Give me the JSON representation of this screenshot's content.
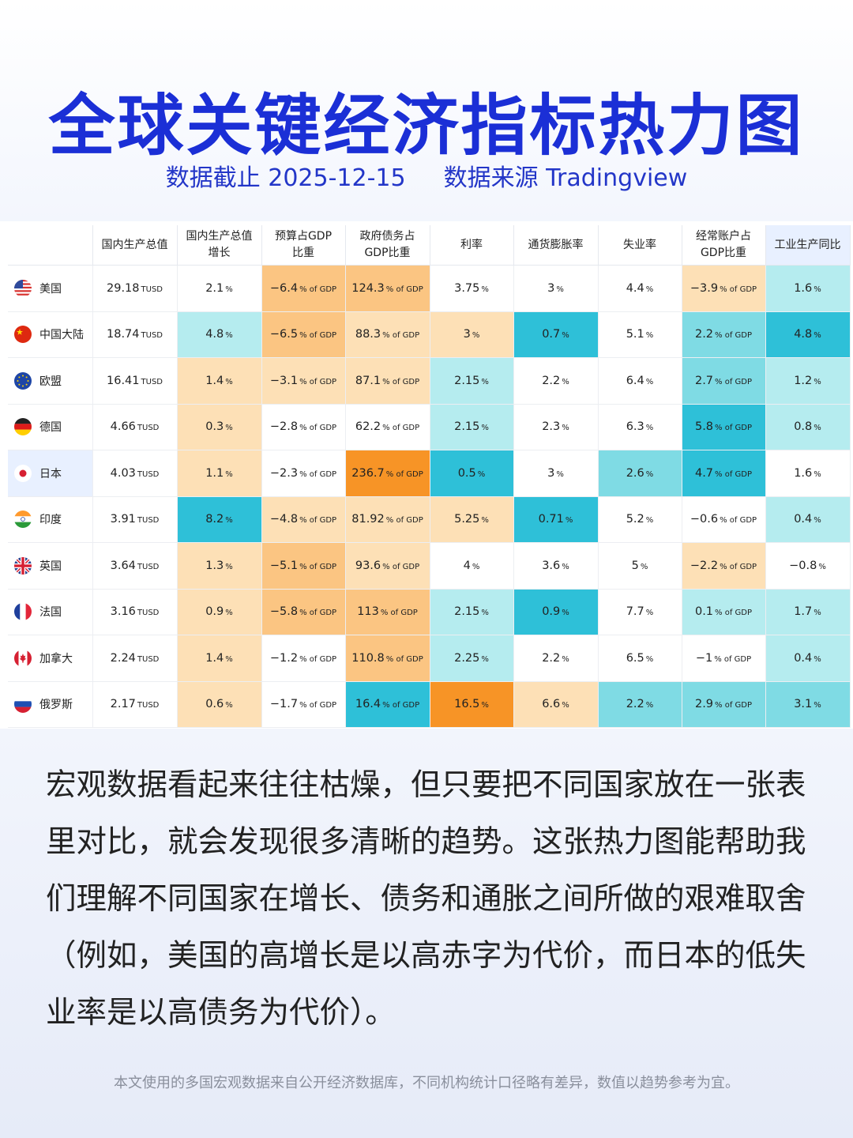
{
  "header": {
    "title": "全球关键经济指标热力图",
    "date_text": "数据截止 2025-12-15",
    "source_text": "数据来源 Tradingview"
  },
  "colors": {
    "title": "#1b2fd6",
    "orange_light": "#fde0b6",
    "orange_mid": "#fbc582",
    "orange_dark": "#f79426",
    "teal_light": "#b5ecef",
    "teal_mid": "#7fdbe4",
    "teal_dark": "#2ec0d8"
  },
  "chart_data": {
    "type": "table",
    "columns": [
      "国内生产总值",
      "国内生产总值\n增长",
      "预算占GDP\n比重",
      "政府债务占\nGDP比重",
      "利率",
      "通货膨胀率",
      "失业率",
      "经常账户占\nGDP比重",
      "工业生产同比"
    ],
    "highlighted_column": 8,
    "rows": [
      {
        "country": "美国",
        "flag": "us-flag-icon",
        "cells": [
          {
            "v": "29.18",
            "u": "TUSD",
            "c": "w"
          },
          {
            "v": "2.1",
            "u": "%",
            "c": "w"
          },
          {
            "v": "−6.4",
            "u": "% of GDP",
            "c": "o2"
          },
          {
            "v": "124.3",
            "u": "% of GDP",
            "c": "o2"
          },
          {
            "v": "3.75",
            "u": "%",
            "c": "w"
          },
          {
            "v": "3",
            "u": "%",
            "c": "w"
          },
          {
            "v": "4.4",
            "u": "%",
            "c": "w"
          },
          {
            "v": "−3.9",
            "u": "% of GDP",
            "c": "o1"
          },
          {
            "v": "1.6",
            "u": "%",
            "c": "t1"
          }
        ]
      },
      {
        "country": "中国大陆",
        "flag": "cn-flag-icon",
        "cells": [
          {
            "v": "18.74",
            "u": "TUSD",
            "c": "w"
          },
          {
            "v": "4.8",
            "u": "%",
            "c": "t1"
          },
          {
            "v": "−6.5",
            "u": "% of GDP",
            "c": "o2"
          },
          {
            "v": "88.3",
            "u": "% of GDP",
            "c": "o1"
          },
          {
            "v": "3",
            "u": "%",
            "c": "o1"
          },
          {
            "v": "0.7",
            "u": "%",
            "c": "t3"
          },
          {
            "v": "5.1",
            "u": "%",
            "c": "w"
          },
          {
            "v": "2.2",
            "u": "% of GDP",
            "c": "t2"
          },
          {
            "v": "4.8",
            "u": "%",
            "c": "t3"
          }
        ]
      },
      {
        "country": "欧盟",
        "flag": "eu-flag-icon",
        "cells": [
          {
            "v": "16.41",
            "u": "TUSD",
            "c": "w"
          },
          {
            "v": "1.4",
            "u": "%",
            "c": "o1"
          },
          {
            "v": "−3.1",
            "u": "% of GDP",
            "c": "o1"
          },
          {
            "v": "87.1",
            "u": "% of GDP",
            "c": "o1"
          },
          {
            "v": "2.15",
            "u": "%",
            "c": "t1"
          },
          {
            "v": "2.2",
            "u": "%",
            "c": "w"
          },
          {
            "v": "6.4",
            "u": "%",
            "c": "w"
          },
          {
            "v": "2.7",
            "u": "% of GDP",
            "c": "t2"
          },
          {
            "v": "1.2",
            "u": "%",
            "c": "t1"
          }
        ]
      },
      {
        "country": "德国",
        "flag": "de-flag-icon",
        "cells": [
          {
            "v": "4.66",
            "u": "TUSD",
            "c": "w"
          },
          {
            "v": "0.3",
            "u": "%",
            "c": "o1"
          },
          {
            "v": "−2.8",
            "u": "% of GDP",
            "c": "w"
          },
          {
            "v": "62.2",
            "u": "% of GDP",
            "c": "w"
          },
          {
            "v": "2.15",
            "u": "%",
            "c": "t1"
          },
          {
            "v": "2.3",
            "u": "%",
            "c": "w"
          },
          {
            "v": "6.3",
            "u": "%",
            "c": "w"
          },
          {
            "v": "5.8",
            "u": "% of GDP",
            "c": "t3"
          },
          {
            "v": "0.8",
            "u": "%",
            "c": "t1"
          }
        ]
      },
      {
        "country": "日本",
        "flag": "jp-flag-icon",
        "cells": [
          {
            "v": "4.03",
            "u": "TUSD",
            "c": "w"
          },
          {
            "v": "1.1",
            "u": "%",
            "c": "o1"
          },
          {
            "v": "−2.3",
            "u": "% of GDP",
            "c": "w"
          },
          {
            "v": "236.7",
            "u": "% of GDP",
            "c": "o3"
          },
          {
            "v": "0.5",
            "u": "%",
            "c": "t3"
          },
          {
            "v": "3",
            "u": "%",
            "c": "w"
          },
          {
            "v": "2.6",
            "u": "%",
            "c": "t2"
          },
          {
            "v": "4.7",
            "u": "% of GDP",
            "c": "t3"
          },
          {
            "v": "1.6",
            "u": "%",
            "c": "w"
          }
        ]
      },
      {
        "country": "印度",
        "flag": "in-flag-icon",
        "cells": [
          {
            "v": "3.91",
            "u": "TUSD",
            "c": "w"
          },
          {
            "v": "8.2",
            "u": "%",
            "c": "t3"
          },
          {
            "v": "−4.8",
            "u": "% of GDP",
            "c": "o1"
          },
          {
            "v": "81.92",
            "u": "% of GDP",
            "c": "o1"
          },
          {
            "v": "5.25",
            "u": "%",
            "c": "o1"
          },
          {
            "v": "0.71",
            "u": "%",
            "c": "t3"
          },
          {
            "v": "5.2",
            "u": "%",
            "c": "w"
          },
          {
            "v": "−0.6",
            "u": "% of GDP",
            "c": "w"
          },
          {
            "v": "0.4",
            "u": "%",
            "c": "t1"
          }
        ]
      },
      {
        "country": "英国",
        "flag": "uk-flag-icon",
        "cells": [
          {
            "v": "3.64",
            "u": "TUSD",
            "c": "w"
          },
          {
            "v": "1.3",
            "u": "%",
            "c": "o1"
          },
          {
            "v": "−5.1",
            "u": "% of GDP",
            "c": "o2"
          },
          {
            "v": "93.6",
            "u": "% of GDP",
            "c": "o1"
          },
          {
            "v": "4",
            "u": "%",
            "c": "w"
          },
          {
            "v": "3.6",
            "u": "%",
            "c": "w"
          },
          {
            "v": "5",
            "u": "%",
            "c": "w"
          },
          {
            "v": "−2.2",
            "u": "% of GDP",
            "c": "o1"
          },
          {
            "v": "−0.8",
            "u": "%",
            "c": "w"
          }
        ]
      },
      {
        "country": "法国",
        "flag": "fr-flag-icon",
        "cells": [
          {
            "v": "3.16",
            "u": "TUSD",
            "c": "w"
          },
          {
            "v": "0.9",
            "u": "%",
            "c": "o1"
          },
          {
            "v": "−5.8",
            "u": "% of GDP",
            "c": "o2"
          },
          {
            "v": "113",
            "u": "% of GDP",
            "c": "o2"
          },
          {
            "v": "2.15",
            "u": "%",
            "c": "t1"
          },
          {
            "v": "0.9",
            "u": "%",
            "c": "t3"
          },
          {
            "v": "7.7",
            "u": "%",
            "c": "w"
          },
          {
            "v": "0.1",
            "u": "% of GDP",
            "c": "t1"
          },
          {
            "v": "1.7",
            "u": "%",
            "c": "t1"
          }
        ]
      },
      {
        "country": "加拿大",
        "flag": "ca-flag-icon",
        "cells": [
          {
            "v": "2.24",
            "u": "TUSD",
            "c": "w"
          },
          {
            "v": "1.4",
            "u": "%",
            "c": "o1"
          },
          {
            "v": "−1.2",
            "u": "% of GDP",
            "c": "w"
          },
          {
            "v": "110.8",
            "u": "% of GDP",
            "c": "o2"
          },
          {
            "v": "2.25",
            "u": "%",
            "c": "t1"
          },
          {
            "v": "2.2",
            "u": "%",
            "c": "w"
          },
          {
            "v": "6.5",
            "u": "%",
            "c": "w"
          },
          {
            "v": "−1",
            "u": "% of GDP",
            "c": "w"
          },
          {
            "v": "0.4",
            "u": "%",
            "c": "t1"
          }
        ]
      },
      {
        "country": "俄罗斯",
        "flag": "ru-flag-icon",
        "cells": [
          {
            "v": "2.17",
            "u": "TUSD",
            "c": "w"
          },
          {
            "v": "0.6",
            "u": "%",
            "c": "o1"
          },
          {
            "v": "−1.7",
            "u": "% of GDP",
            "c": "w"
          },
          {
            "v": "16.4",
            "u": "% of GDP",
            "c": "t3"
          },
          {
            "v": "16.5",
            "u": "%",
            "c": "o3"
          },
          {
            "v": "6.6",
            "u": "%",
            "c": "o1"
          },
          {
            "v": "2.2",
            "u": "%",
            "c": "t2"
          },
          {
            "v": "2.9",
            "u": "% of GDP",
            "c": "t2"
          },
          {
            "v": "3.1",
            "u": "%",
            "c": "t2"
          }
        ]
      }
    ]
  },
  "body": {
    "paragraph": "宏观数据看起来往往枯燥，但只要把不同国家放在一张表里对比，就会发现很多清晰的趋势。这张热力图能帮助我们理解不同国家在增长、债务和通胀之间所做的艰难取舍（例如，美国的高增长是以高赤字为代价，而日本的低失业率是以高债务为代价）。",
    "footnote": "本文使用的多国宏观数据来自公开经济数据库，不同机构统计口径略有差异，数值以趋势参考为宜。"
  }
}
